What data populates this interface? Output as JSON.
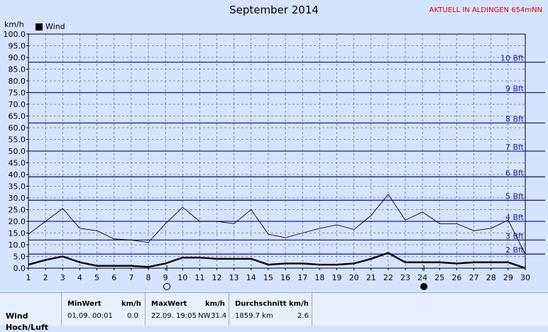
{
  "chart_data": {
    "type": "line",
    "title": "September 2014",
    "station": "AKTUELL IN ALDINGEN 654mNN",
    "ylabel": "km/h",
    "ylim": [
      0,
      100
    ],
    "y_ticks": [
      "0.0",
      "5.0",
      "10.0",
      "15.0",
      "20.0",
      "25.0",
      "30.0",
      "35.0",
      "40.0",
      "45.0",
      "50.0",
      "55.0",
      "60.0",
      "65.0",
      "70.0",
      "75.0",
      "80.0",
      "85.0",
      "90.0",
      "95.0",
      "100.0"
    ],
    "x": [
      1,
      2,
      3,
      4,
      5,
      6,
      7,
      8,
      9,
      10,
      11,
      12,
      13,
      14,
      15,
      16,
      17,
      18,
      19,
      20,
      21,
      22,
      23,
      24,
      25,
      26,
      27,
      28,
      29,
      30
    ],
    "series": [
      {
        "name": "Wind",
        "style": "bold",
        "color": "#000000",
        "values": [
          1.5,
          3.5,
          5,
          2.5,
          1,
          1,
          1,
          0.5,
          2,
          4.5,
          4.5,
          4,
          4,
          4,
          1.5,
          2,
          2,
          1.5,
          1.5,
          2,
          4,
          6.5,
          2.5,
          2.5,
          2.5,
          2,
          2.5,
          2.5,
          2.5,
          0
        ]
      },
      {
        "style": "thin",
        "color": "#000000",
        "values": [
          14.5,
          20,
          25.5,
          17,
          16,
          12.5,
          12,
          11,
          19,
          26,
          20,
          20,
          19,
          25,
          14.5,
          13,
          15,
          17,
          18.5,
          16.5,
          22.5,
          31.5,
          20.5,
          24,
          19,
          19,
          16,
          17,
          20.5,
          6
        ]
      }
    ],
    "beaufort": [
      {
        "label": "2 Bft",
        "value": 6
      },
      {
        "label": "3 Bft",
        "value": 12
      },
      {
        "label": "4 Bft",
        "value": 20
      },
      {
        "label": "5 Bft",
        "value": 29
      },
      {
        "label": "6 Bft",
        "value": 39
      },
      {
        "label": "7 Bft",
        "value": 50
      },
      {
        "label": "8 Bft",
        "value": 62
      },
      {
        "label": "9 Bft",
        "value": 75
      },
      {
        "label": "10 Bft",
        "value": 88
      }
    ],
    "moon_phases": [
      {
        "day": 9,
        "phase": "full"
      },
      {
        "day": 24,
        "phase": "new"
      }
    ],
    "colors": {
      "background": "#d4e4ff",
      "beaufort_line": "#1a1aa0",
      "grid": "#707070",
      "beaufort_text": "#1a1aa0"
    }
  },
  "footer": {
    "row_label": "Wind",
    "row_label2": "Hoch/Luft",
    "min": {
      "header": "MinWert",
      "unit": "km/h",
      "date": "01.09.  00:01",
      "value": "0.0"
    },
    "max": {
      "header": "MaxWert",
      "unit": "km/h",
      "date": "22.09.  19:05",
      "dir": "NW",
      "value": "31.4"
    },
    "avg": {
      "header": "Durchschnitt km/h",
      "km": "1859.7 km",
      "value": "2.6"
    }
  }
}
